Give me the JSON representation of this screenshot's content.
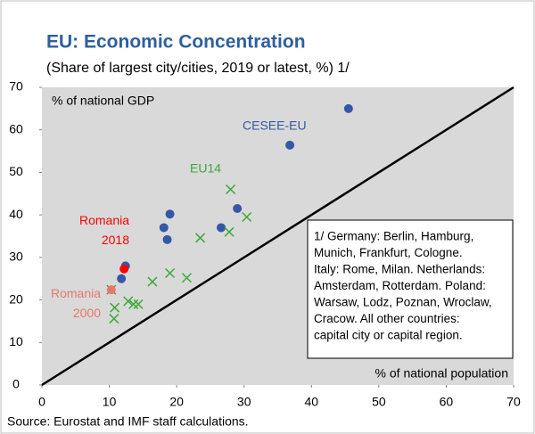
{
  "chart_data": {
    "type": "scatter",
    "title": "EU: Economic Concentration",
    "subtitle": "(Share of largest city/cities, 2019 or latest, %) 1/",
    "y_label": "% of national GDP",
    "x_label": "% of national population",
    "note_lines": [
      "1/ Germany: Berlin, Hamburg,",
      "Munich, Frankfurt, Cologne.",
      "Italy: Rome, Milan. Netherlands:",
      "Amsterdam, Rotterdam. Poland:",
      "Warsaw, Lodz, Poznan, Wroclaw,",
      "Cracow. All other countries:",
      "capital city or capital region."
    ],
    "source": "Source: Eurostat and IMF staff calculations.",
    "xlim": [
      0,
      70
    ],
    "ylim": [
      0,
      70
    ],
    "xticks": [
      0,
      10,
      20,
      30,
      40,
      50,
      60,
      70
    ],
    "yticks": [
      0,
      10,
      20,
      30,
      40,
      50,
      60,
      70
    ],
    "series": [
      {
        "name": "CESEE-EU",
        "color": "#3557a6",
        "marker": "circle",
        "x": [
          45.5,
          36.8,
          19.0,
          18.1,
          18.6,
          29.0,
          26.6,
          12.4,
          11.8
        ],
        "values": [
          65.0,
          56.4,
          40.2,
          37.0,
          34.2,
          41.5,
          37.0,
          28.0,
          25.0
        ]
      },
      {
        "name": "EU14",
        "color": "#3aa935",
        "marker": "x",
        "x": [
          28.0,
          30.4,
          27.8,
          23.5,
          19.0,
          21.5,
          16.4,
          12.8,
          13.6,
          14.3,
          10.8,
          10.7,
          10.3
        ],
        "values": [
          46.0,
          39.5,
          36.0,
          34.6,
          26.3,
          25.2,
          24.3,
          19.7,
          19.0,
          19.0,
          18.2,
          15.6,
          22.4
        ]
      },
      {
        "name": "Romania 2018",
        "color": "#ff0000",
        "marker": "circle",
        "x": [
          12.2
        ],
        "values": [
          27.3
        ]
      },
      {
        "name": "Romania 2000",
        "color": "#e8786a",
        "marker": "circle",
        "x": [
          10.3
        ],
        "values": [
          22.4
        ]
      }
    ]
  }
}
